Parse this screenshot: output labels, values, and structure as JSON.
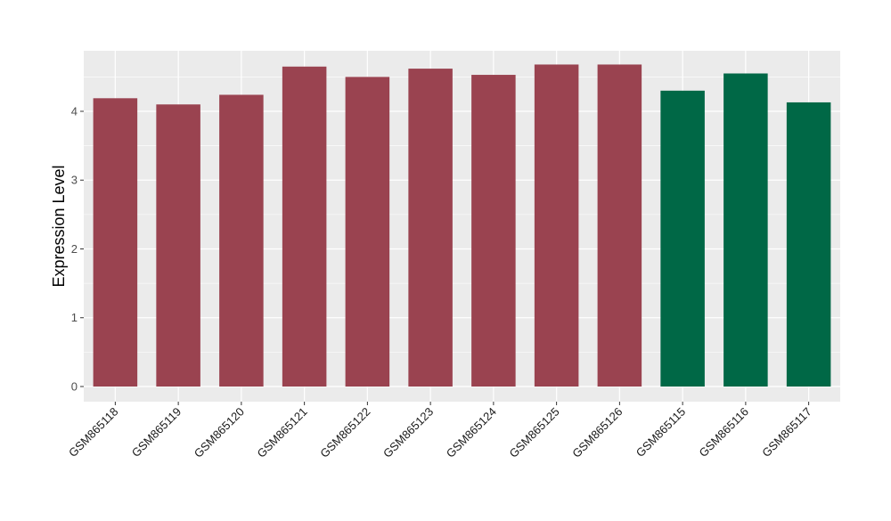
{
  "chart_data": {
    "type": "bar",
    "title": "",
    "xlabel": "",
    "ylabel": "Expression Level",
    "ylim": [
      -0.22,
      4.88
    ],
    "yticks": [
      0,
      1,
      2,
      3,
      4
    ],
    "grid": true,
    "legend": "none",
    "categories": [
      "GSM865118",
      "GSM865119",
      "GSM865120",
      "GSM865121",
      "GSM865122",
      "GSM865123",
      "GSM865124",
      "GSM865125",
      "GSM865126",
      "GSM865115",
      "GSM865116",
      "GSM865117"
    ],
    "values": [
      4.19,
      4.1,
      4.24,
      4.65,
      4.5,
      4.62,
      4.53,
      4.68,
      4.68,
      4.3,
      4.55,
      4.13
    ],
    "bar_colors": [
      "#9a4350",
      "#9a4350",
      "#9a4350",
      "#9a4350",
      "#9a4350",
      "#9a4350",
      "#9a4350",
      "#9a4350",
      "#9a4350",
      "#006846",
      "#006846",
      "#006846"
    ],
    "panel_background": "#ebebeb",
    "grid_color": "#ffffff"
  }
}
